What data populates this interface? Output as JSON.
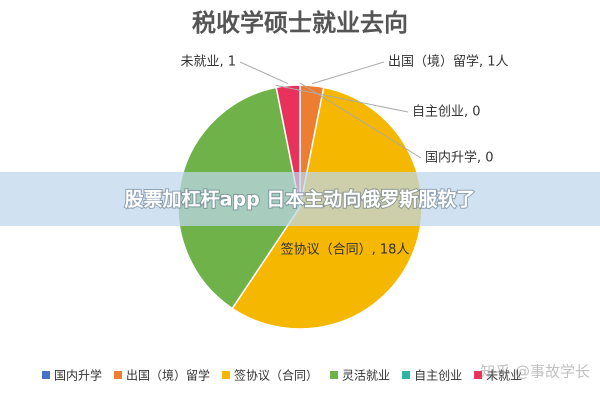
{
  "chart_data": {
    "type": "pie",
    "title": "税收学硕士就业去向",
    "categories": [
      "国内升学",
      "出国（境）留学",
      "签协议（合同）",
      "灵活就业",
      "自主创业",
      "未就业"
    ],
    "values": [
      0,
      1,
      18,
      12,
      0,
      1
    ],
    "value_labels": [
      "国内升学, 0",
      "出国（境）留学, 1人",
      "签协议（合同）, 18人",
      null,
      "自主创业, 0",
      "未就业, 1"
    ],
    "colors": [
      "#4472c4",
      "#ed7d31",
      "#f5b700",
      "#6fb24a",
      "#2ab5a5",
      "#e8315b"
    ],
    "legend": "bottom"
  },
  "overlay": {
    "banner": "股票加杠杆app 日本主动向俄罗斯服软了",
    "watermark": "知乎 @事故学长"
  }
}
